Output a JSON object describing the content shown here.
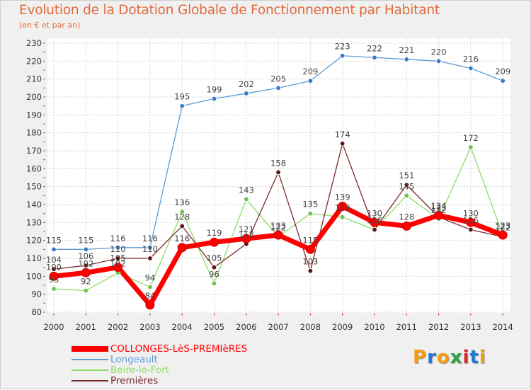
{
  "header": {
    "title": "Evolution de la Dotation Globale de Fonctionnement par Habitant",
    "subtitle": "(en € et par an)"
  },
  "logo": {
    "text": "Proxiti",
    "colors": [
      "#f39c12",
      "#1f78d1",
      "#f39c12",
      "#2ba44a",
      "#d62b2b",
      "#1f78d1",
      "#f39c12"
    ]
  },
  "chart_data": {
    "type": "line",
    "title": "Evolution de la Dotation Globale de Fonctionnement par Habitant",
    "subtitle": "(en € et par an)",
    "xlabel": "",
    "ylabel": "",
    "x": [
      "2000",
      "2001",
      "2002",
      "2003",
      "2004",
      "2005",
      "2006",
      "2007",
      "2008",
      "2009",
      "2010",
      "2011",
      "2012",
      "2013",
      "2014"
    ],
    "ylim": [
      80,
      230
    ],
    "yticks": [
      "80",
      "90",
      "100",
      "110",
      "120",
      "130",
      "140",
      "150",
      "160",
      "170",
      "180",
      "190",
      "200",
      "210",
      "220",
      "230"
    ],
    "grid": true,
    "legend_position": "bottom-left",
    "series": [
      {
        "name": "Longeault",
        "color": "#5b9bd5",
        "marker": "#3a7bc8",
        "values": [
          115,
          115,
          116,
          116,
          195,
          199,
          202,
          205,
          209,
          223,
          222,
          221,
          220,
          216,
          209
        ],
        "labels": [
          "115",
          "115",
          "116",
          "116",
          "195",
          "199",
          "202",
          "205",
          "209",
          "223",
          "222",
          "221",
          "220",
          "216",
          "209"
        ]
      },
      {
        "name": "Beire-le-Fort",
        "color": "#8fdc6a",
        "marker": "#6cc44a",
        "values": [
          93,
          92,
          102,
          94,
          136,
          96,
          143,
          122,
          135,
          133,
          126,
          145,
          132,
          172,
          123
        ],
        "labels": [
          "93",
          "92",
          "102",
          "94",
          "136",
          "96",
          "143",
          "122",
          "135",
          "133",
          "126",
          "145",
          "132",
          "172",
          "123"
        ]
      },
      {
        "name": "Premières",
        "color": "#7a2a2a",
        "marker": "#5a1414",
        "values": [
          104,
          106,
          110,
          110,
          128,
          105,
          118,
          158,
          103,
          174,
          126,
          151,
          133,
          126,
          122
        ],
        "labels": [
          "104",
          "106",
          "110",
          "110",
          "128",
          "105",
          "118",
          "158",
          "103",
          "174",
          "126",
          "151",
          "133",
          "126",
          "122"
        ]
      },
      {
        "name": "COLLONGES-LèS-PREMIèRES",
        "color": "#ff0000",
        "marker": "#ff0000",
        "values": [
          100,
          102,
          105,
          84,
          116,
          119,
          121,
          123,
          115,
          139,
          130,
          128,
          134,
          130,
          123
        ],
        "labels": [
          "100",
          "102",
          "105",
          "84",
          "116",
          "119",
          "121",
          "123",
          "115",
          "139",
          "130",
          "128",
          "134",
          "130",
          "123"
        ]
      }
    ],
    "legend": [
      {
        "name": "COLLONGES-LèS-PREMIèRES",
        "color": "#ff0000"
      },
      {
        "name": "Longeault",
        "color": "#5b9bd5"
      },
      {
        "name": "Beire-le-Fort",
        "color": "#8fdc6a"
      },
      {
        "name": "Premières",
        "color": "#7a2a2a"
      }
    ]
  }
}
